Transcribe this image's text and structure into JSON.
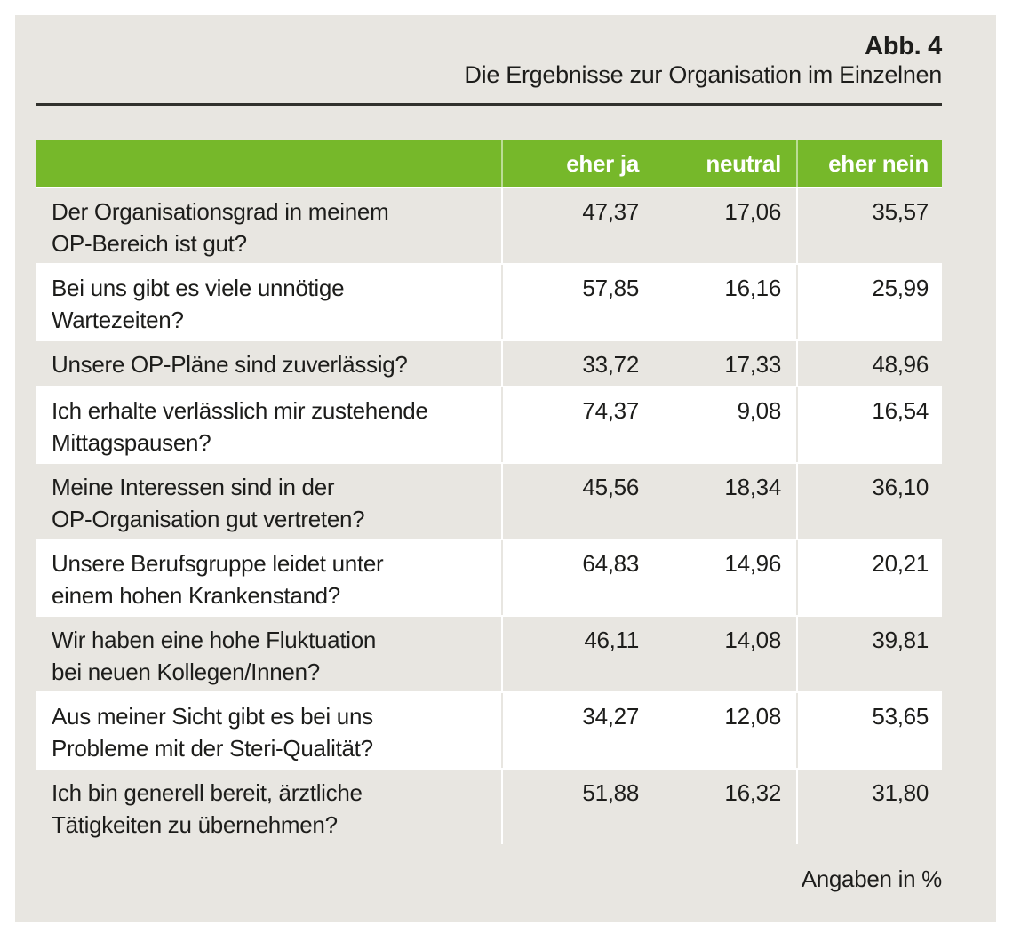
{
  "figure": {
    "label": "Abb. 4",
    "title": "Die Ergebnisse zur Organisation im Einzelnen",
    "footnote": "Angaben in %"
  },
  "colors": {
    "accent_green": "#76b82a",
    "panel_beige": "#e8e6e1",
    "row_white": "#ffffff",
    "text": "#1d1d1b",
    "rule": "#31312d"
  },
  "chart_data": {
    "type": "table",
    "figure_label": "Abb. 4",
    "title": "Die Ergebnisse zur Organisation im Einzelnen",
    "unit_note": "Angaben in %",
    "unit": "percent",
    "columns": [
      "eher ja",
      "neutral",
      "eher nein"
    ],
    "rows": [
      {
        "question": "Der Organisationsgrad in meinem\nOP-Bereich ist gut?",
        "values": [
          "47,37",
          "17,06",
          "35,57"
        ]
      },
      {
        "question": "Bei uns gibt es viele unnötige\nWartezeiten?",
        "values": [
          "57,85",
          "16,16",
          "25,99"
        ]
      },
      {
        "question": "Unsere OP-Pläne sind zuverlässig?",
        "values": [
          "33,72",
          "17,33",
          "48,96"
        ]
      },
      {
        "question": "Ich erhalte verlässlich mir zustehende\nMittagspausen?",
        "values": [
          "74,37",
          "9,08",
          "16,54"
        ]
      },
      {
        "question": "Meine Interessen sind in der\nOP-Organisation gut vertreten?",
        "values": [
          "45,56",
          "18,34",
          "36,10"
        ]
      },
      {
        "question": "Unsere Berufsgruppe leidet unter\neinem hohen Krankenstand?",
        "values": [
          "64,83",
          "14,96",
          "20,21"
        ]
      },
      {
        "question": "Wir haben eine hohe Fluktuation\nbei neuen Kollegen/Innen?",
        "values": [
          "46,11",
          "14,08",
          "39,81"
        ]
      },
      {
        "question": "Aus meiner Sicht gibt es bei uns\nProbleme mit der Steri-Qualität?",
        "values": [
          "34,27",
          "12,08",
          "53,65"
        ]
      },
      {
        "question": "Ich bin generell bereit, ärztliche\nTätigkeiten zu übernehmen?",
        "values": [
          "51,88",
          "16,32",
          "31,80"
        ]
      }
    ],
    "numeric_values": [
      [
        47.37,
        17.06,
        35.57
      ],
      [
        57.85,
        16.16,
        25.99
      ],
      [
        33.72,
        17.33,
        48.96
      ],
      [
        74.37,
        9.08,
        16.54
      ],
      [
        45.56,
        18.34,
        36.1
      ],
      [
        64.83,
        14.96,
        20.21
      ],
      [
        46.11,
        14.08,
        39.81
      ],
      [
        34.27,
        12.08,
        53.65
      ],
      [
        51.88,
        16.32,
        31.8
      ]
    ]
  }
}
